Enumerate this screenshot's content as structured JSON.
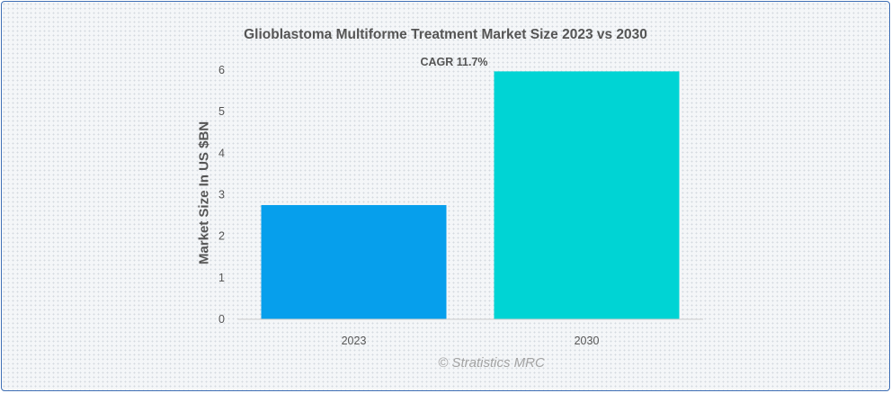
{
  "chart_data": {
    "type": "bar",
    "title": "Glioblastoma Multiforme Treatment Market Size 2023 vs 2030",
    "annotation": "CAGR 11.7%",
    "ylabel": "Market Size In US $BN",
    "xlabel": "",
    "categories": [
      "2023",
      "2030"
    ],
    "values": [
      2.75,
      5.97
    ],
    "colors": [
      "#069fec",
      "#00d4d4"
    ],
    "ylim": [
      0,
      6
    ],
    "yticks": [
      "0",
      "1",
      "2",
      "3",
      "4",
      "5",
      "6"
    ],
    "grid": false,
    "legend": "none"
  },
  "footer": {
    "watermark": "© Stratistics MRC"
  }
}
